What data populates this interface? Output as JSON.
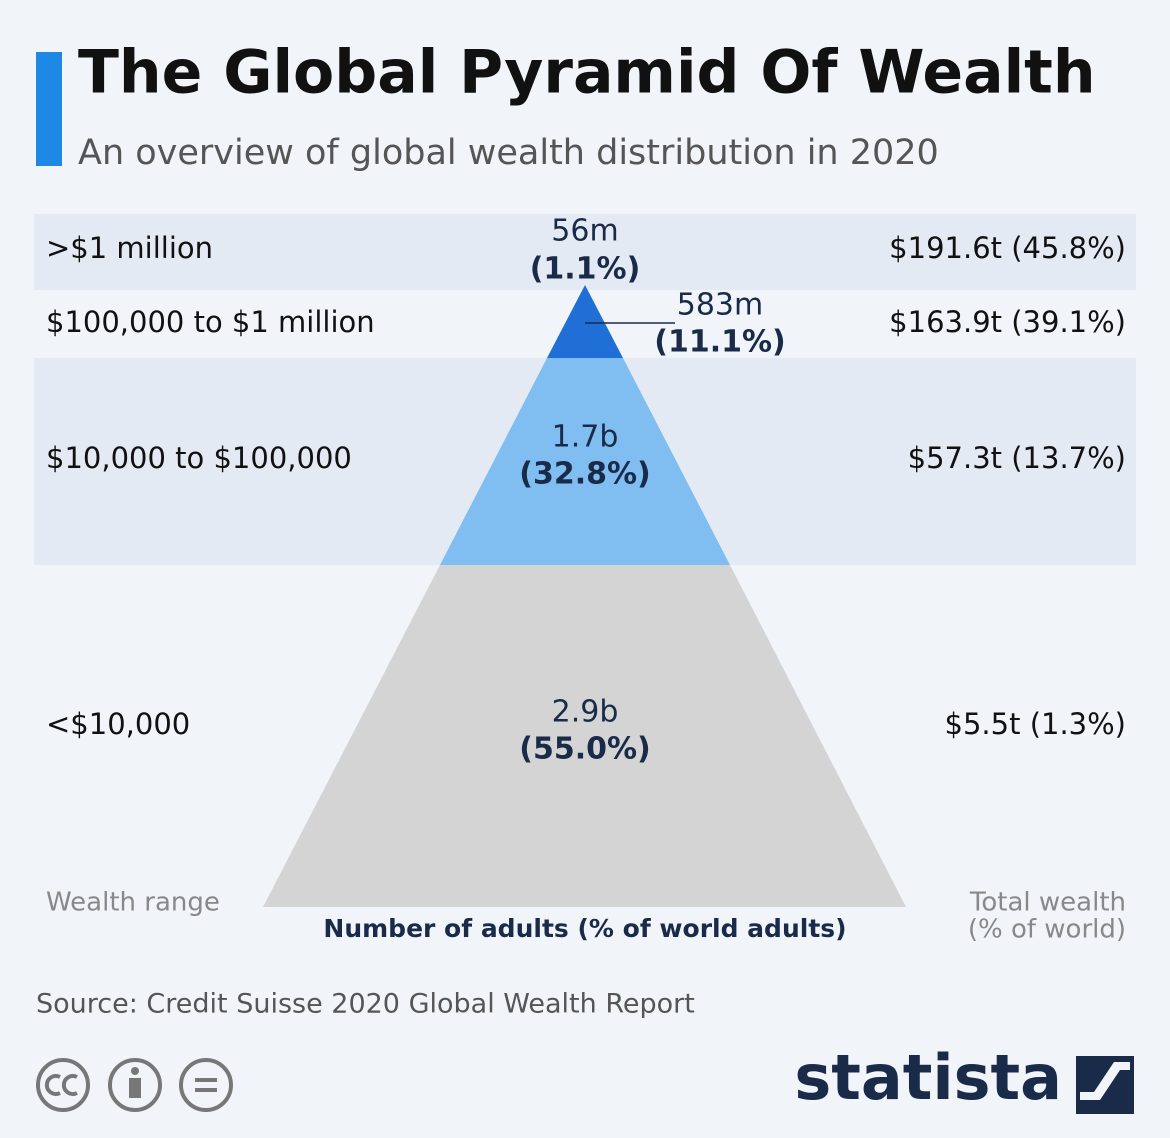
{
  "header": {
    "title": "The Global Pyramid Of Wealth",
    "subtitle": "An overview of global wealth distribution in 2020"
  },
  "tiers": [
    {
      "range": ">$1 million",
      "adults": "56m",
      "adults_share": "(1.1%)",
      "wealth": "$191.6t (45.8%)"
    },
    {
      "range": "$100,000 to $1 million",
      "adults": "583m",
      "adults_share": "(11.1%)",
      "wealth": "$163.9t (39.1%)"
    },
    {
      "range": "$10,000 to $100,000",
      "adults": "1.7b",
      "adults_share": "(32.8%)",
      "wealth": "$57.3t (13.7%)"
    },
    {
      "range": "<$10,000",
      "adults": "2.9b",
      "adults_share": "(55.0%)",
      "wealth": "$5.5t (1.3%)"
    }
  ],
  "labels": {
    "left": "Wealth range",
    "center": "Number of adults (% of world adults)",
    "right_line1": "Total wealth",
    "right_line2": "(% of world)"
  },
  "footer": {
    "source": "Source: Credit Suisse 2020 Global Wealth Report",
    "logo": "statista"
  }
}
